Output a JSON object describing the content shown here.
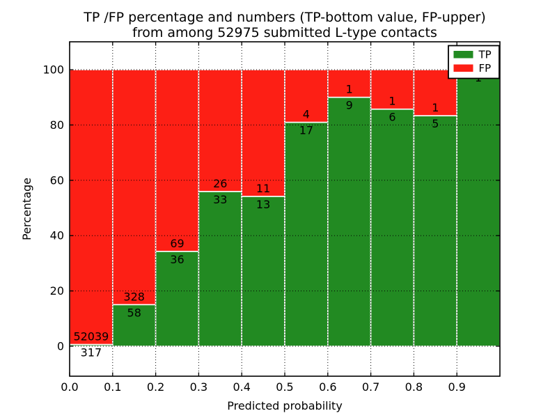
{
  "figure": {
    "background": "#ffffff",
    "title_line1": "TP /FP percentage and numbers (TP-bottom value, FP-upper)",
    "title_line2": "from among 52975 submitted L-type contacts",
    "total_submitted": 52975
  },
  "chart_data": {
    "type": "bar",
    "variant": "stacked-percentage",
    "title": "TP /FP percentage and numbers (TP-bottom value, FP-upper) from among 52975 submitted L-type contacts",
    "xlabel": "Predicted probability",
    "ylabel": "Percentage",
    "xlim": [
      0.0,
      1.0
    ],
    "ylim_percent": [
      -10.8,
      110.1
    ],
    "grid": "dotted-both-axes",
    "x_bin_starts": [
      0.0,
      0.1,
      0.2,
      0.3,
      0.4,
      0.5,
      0.6,
      0.7,
      0.8,
      0.9
    ],
    "bin_width": 0.1,
    "x_tick_labels": [
      "0.0",
      "0.1",
      "0.2",
      "0.3",
      "0.4",
      "0.5",
      "0.6",
      "0.7",
      "0.8",
      "0.9"
    ],
    "y_tick_values": [
      0,
      20,
      40,
      60,
      80,
      100
    ],
    "y_tick_labels": [
      "0",
      "20",
      "40",
      "60",
      "80",
      "100"
    ],
    "series": [
      {
        "name": "TP",
        "color": "#228a22",
        "counts": [
          317,
          58,
          36,
          33,
          13,
          17,
          9,
          6,
          5,
          1
        ]
      },
      {
        "name": "FP",
        "color": "#fd1f15",
        "counts": [
          52039,
          328,
          69,
          26,
          11,
          4,
          1,
          1,
          1,
          0
        ]
      }
    ],
    "tp_percent": [
      0.61,
      15.03,
      34.29,
      55.93,
      54.17,
      80.95,
      90.0,
      85.71,
      83.33,
      100.0
    ],
    "bar_edge_color": "#ffffff",
    "legend": {
      "position": "upper-right",
      "entries": [
        {
          "label": "TP",
          "color": "#228a22"
        },
        {
          "label": "FP",
          "color": "#fd1f15"
        }
      ]
    }
  }
}
